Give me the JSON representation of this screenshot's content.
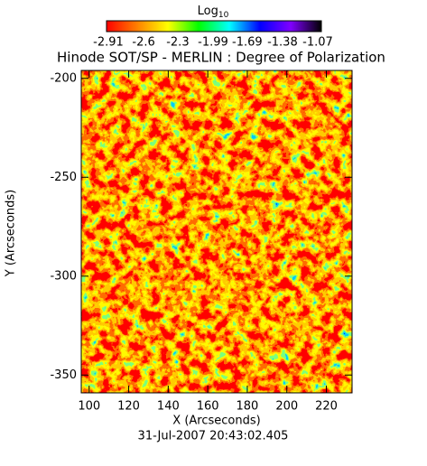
{
  "chart_data": {
    "type": "heatmap",
    "title": "Hinode SOT/SP - MERLIN : Degree of Polarization",
    "x_label": "X (Arcseconds)",
    "y_label": "Y (Arcseconds)",
    "annotation": "31-Jul-2007  20:43:02.405",
    "xlim": [
      96,
      233
    ],
    "xticks": [
      100,
      120,
      140,
      160,
      180,
      200,
      220
    ],
    "ylim": [
      -359,
      -196
    ],
    "yticks": [
      -200,
      -250,
      -300,
      -350
    ],
    "colorbar": {
      "label": "Log",
      "label_sub": "10",
      "clim": [
        -2.91,
        -1.07
      ],
      "ticks": [
        -2.91,
        -2.6,
        -2.3,
        -1.99,
        -1.69,
        -1.38,
        -1.07
      ],
      "colors": [
        "#ff0000",
        "#ff8000",
        "#ffff00",
        "#00ff00",
        "#00ffff",
        "#0000ff",
        "#8000ff",
        "#000000"
      ]
    }
  }
}
